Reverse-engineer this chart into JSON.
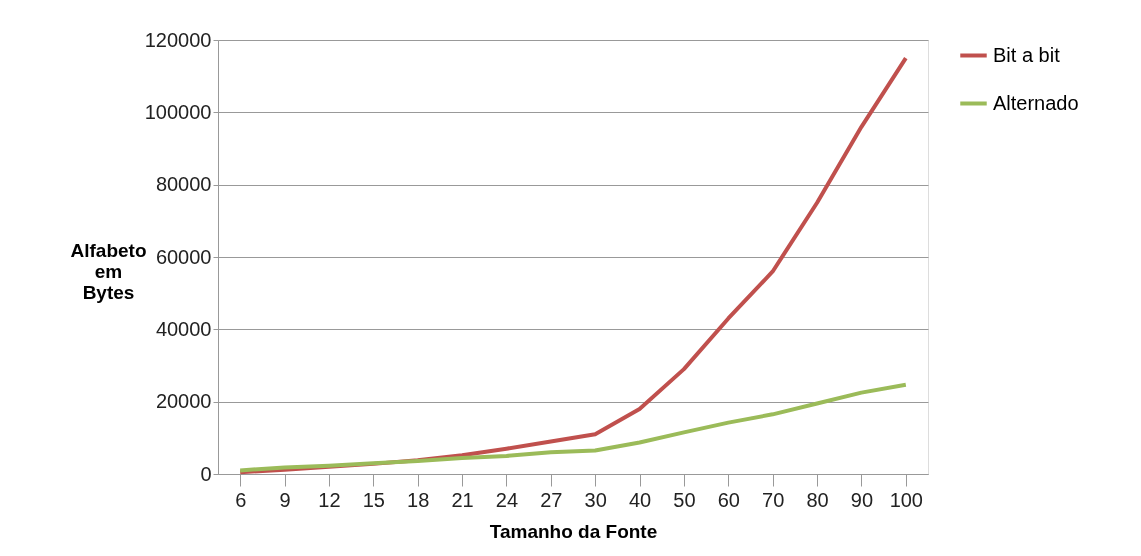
{
  "chart_data": {
    "type": "line",
    "xlabel": "Tamanho da Fonte",
    "ylabel": "Alfabeto em Bytes",
    "categories": [
      "6",
      "9",
      "12",
      "15",
      "18",
      "21",
      "24",
      "27",
      "30",
      "40",
      "50",
      "60",
      "70",
      "80",
      "90",
      "100"
    ],
    "series": [
      {
        "name": "Bit a bit",
        "color": "#c0504d",
        "values": [
          500,
          1200,
          2000,
          2800,
          3800,
          5200,
          7000,
          9000,
          11000,
          18000,
          29000,
          43000,
          56000,
          75000,
          96000,
          115000
        ]
      },
      {
        "name": "Alternado",
        "color": "#9bbb59",
        "values": [
          1000,
          1800,
          2300,
          3000,
          3600,
          4400,
          5000,
          6000,
          6500,
          8700,
          11500,
          14200,
          16500,
          19500,
          22500,
          24700
        ]
      }
    ],
    "ylim": [
      0,
      120000
    ],
    "yticks": [
      0,
      20000,
      40000,
      60000,
      80000,
      100000,
      120000
    ],
    "grid": "y",
    "legend": "right",
    "marker": "none",
    "line_style": "solid"
  }
}
